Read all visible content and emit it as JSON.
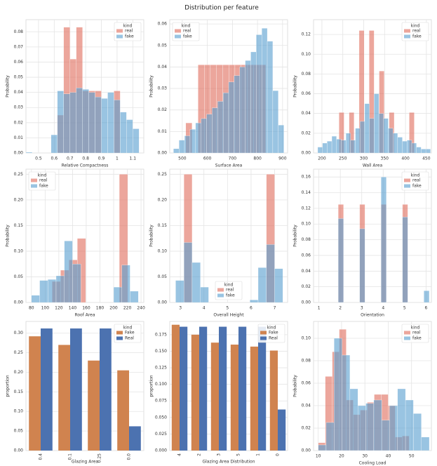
{
  "title": "Distribution per feature",
  "chart_data": [
    {
      "type": "histogram",
      "xlabel": "Relative Compactness",
      "ylabel": "Probability",
      "grid": true,
      "legend": "upper right",
      "legend_title": "kind",
      "xlim": [
        0.42,
        1.17
      ],
      "xticks": [
        0.5,
        0.6,
        0.7,
        0.8,
        0.9,
        1.0,
        1.1
      ],
      "ylim": [
        0,
        0.088
      ],
      "yticks": [
        {
          "value": 0,
          "label": "0.00"
        },
        0.01,
        0.02,
        0.03,
        0.04,
        0.05,
        0.06,
        0.07,
        0.08
      ],
      "series": [
        {
          "name": "real",
          "color": "#e0705f",
          "bins": [
            0.62,
            0.66,
            0.7,
            0.74,
            0.78,
            0.82,
            0.86,
            0.9,
            0.94,
            0.98,
            1.02
          ],
          "values": [
            0.025,
            0.083,
            0.062,
            0.083,
            0.041,
            0.041,
            0.041,
            0,
            0,
            0.041
          ]
        },
        {
          "name": "fake",
          "color": "#5b9fd0",
          "bins": [
            0.42,
            0.46,
            0.5,
            0.54,
            0.58,
            0.62,
            0.66,
            0.7,
            0.74,
            0.78,
            0.82,
            0.86,
            0.9,
            0.94,
            0.98,
            1.02,
            1.06,
            1.1,
            1.14
          ],
          "values": [
            0.0005,
            0,
            0,
            0,
            0.012,
            0.041,
            0.039,
            0.04,
            0.043,
            0.042,
            0.04,
            0.037,
            0.036,
            0.04,
            0.035,
            0.027,
            0.022,
            0.016
          ]
        }
      ]
    },
    {
      "type": "histogram",
      "xlabel": "Surface Area",
      "ylabel": "Probability",
      "grid": true,
      "legend": "upper left",
      "legend_title": "kind",
      "xlim": [
        450,
        920
      ],
      "xticks": [
        500,
        600,
        700,
        800,
        900
      ],
      "ylim": [
        0,
        0.062
      ],
      "yticks": [
        {
          "value": 0,
          "label": "0.00"
        },
        0.01,
        0.02,
        0.03,
        0.04,
        0.05,
        0.06
      ],
      "series": [
        {
          "name": "real",
          "color": "#e0705f",
          "bins": [
            514,
            539,
            563,
            588,
            612,
            637,
            661,
            686,
            710,
            735,
            759,
            784,
            808,
            833
          ],
          "values": [
            0.014,
            0,
            0.041,
            0.041,
            0.041,
            0.041,
            0.041,
            0.041,
            0.041,
            0.041,
            0.041,
            0.041,
            0.041
          ]
        },
        {
          "name": "fake",
          "color": "#5b9fd0",
          "bins": [
            465,
            487,
            509,
            531,
            553,
            575,
            597,
            619,
            641,
            663,
            685,
            707,
            729,
            751,
            773,
            795,
            817,
            839,
            861,
            883,
            905
          ],
          "values": [
            0.002,
            0.006,
            0.008,
            0.011,
            0.014,
            0.016,
            0.018,
            0.021,
            0.024,
            0.028,
            0.033,
            0.036,
            0.04,
            0.043,
            0.047,
            0.055,
            0.058,
            0.052,
            0.029,
            0.013
          ]
        }
      ]
    },
    {
      "type": "histogram",
      "xlabel": "Wall Area",
      "ylabel": "Probability",
      "grid": true,
      "legend": "upper right",
      "legend_title": "kind",
      "xlim": [
        180,
        462
      ],
      "xticks": [
        200,
        250,
        300,
        350,
        400,
        450
      ],
      "ylim": [
        0,
        0.135
      ],
      "yticks": [
        {
          "value": 0,
          "label": "0.00"
        },
        0.02,
        0.04,
        0.06,
        0.08,
        {
          "value": 0.1,
          "label": "0.10"
        },
        0.12
      ],
      "series": [
        {
          "name": "real",
          "color": "#e0705f",
          "bins": [
            241,
            253,
            265,
            277,
            289,
            301,
            313,
            325,
            337,
            349,
            361,
            373,
            385,
            397,
            409,
            421
          ],
          "values": [
            0.041,
            0,
            0.041,
            0,
            0.124,
            0,
            0.124,
            0,
            0.083,
            0,
            0.041,
            0,
            0,
            0,
            0.041
          ]
        },
        {
          "name": "fake",
          "color": "#5b9fd0",
          "bins": [
            190,
            201.25,
            212.5,
            223.75,
            235,
            246.25,
            257.5,
            268.75,
            280,
            291.25,
            302.5,
            313.75,
            325,
            336.25,
            347.5,
            358.75,
            370,
            381.25,
            392.5,
            403.75,
            415,
            426.25,
            437.5,
            448.75,
            460
          ],
          "values": [
            0.006,
            0.01,
            0.012,
            0.017,
            0.014,
            0.013,
            0.02,
            0.013,
            0.025,
            0.032,
            0.05,
            0.035,
            0.06,
            0.04,
            0.035,
            0.025,
            0.02,
            0.016,
            0.012,
            0.013,
            0.01,
            0.006,
            0.004,
            0.004
          ]
        }
      ]
    },
    {
      "type": "histogram",
      "xlabel": "Roof Area",
      "ylabel": "Probability",
      "grid": true,
      "legend": "upper left",
      "legend_title": "kind",
      "xlim": [
        72,
        244
      ],
      "xticks": [
        80,
        100,
        120,
        140,
        160,
        180,
        200,
        220,
        240
      ],
      "ylim": [
        0,
        0.26
      ],
      "yticks": [
        {
          "value": 0,
          "label": "0.00"
        },
        0.05,
        {
          "value": 0.1,
          "label": "0.10"
        },
        0.15,
        {
          "value": 0.2,
          "label": "0.20"
        },
        0.25
      ],
      "series": [
        {
          "name": "real",
          "color": "#e0705f",
          "bins": [
            110.25,
            122.5,
            134.75,
            147,
            159.25,
            171.5,
            183.75,
            196,
            208.25,
            220.5
          ],
          "values": [
            0.041,
            0.063,
            0.083,
            0.125,
            0,
            0,
            0,
            0,
            0.25
          ]
        },
        {
          "name": "fake",
          "color": "#5b9fd0",
          "bins": [
            80,
            92,
            104,
            116,
            128,
            140,
            152,
            164,
            176,
            188,
            200,
            212,
            224,
            236
          ],
          "values": [
            0.014,
            0.043,
            0.045,
            0.052,
            0.12,
            0.075,
            0,
            0,
            0,
            0,
            0.03,
            0.073,
            0.022
          ]
        }
      ]
    },
    {
      "type": "histogram",
      "xlabel": "Overall Height",
      "ylabel": "Probability",
      "grid": true,
      "legend": "lower center",
      "legend_title": "kind",
      "xlim": [
        2.55,
        7.55
      ],
      "xticks": [
        3,
        4,
        5,
        6,
        7
      ],
      "ylim": [
        0,
        0.26
      ],
      "yticks": [
        {
          "value": 0,
          "label": "0.00"
        },
        0.05,
        {
          "value": 0.1,
          "label": "0.10"
        },
        0.15,
        {
          "value": 0.2,
          "label": "0.20"
        },
        0.25
      ],
      "series": [
        {
          "name": "real",
          "color": "#e0705f",
          "bins": [
            3.15,
            3.5,
            6.65,
            7.0
          ],
          "values": [
            0.25,
            0,
            0.25
          ]
        },
        {
          "name": "fake",
          "color": "#5b9fd0",
          "bins": [
            2.8,
            3.15,
            3.5,
            3.85,
            4.2,
            4.55,
            4.9,
            5.25,
            5.6,
            5.95,
            6.3,
            6.65,
            7.0,
            7.35
          ],
          "values": [
            0.043,
            0.117,
            0.078,
            0.03,
            0,
            0,
            0,
            0,
            0,
            0.005,
            0.068,
            0.113,
            0.066
          ]
        }
      ]
    },
    {
      "type": "histogram",
      "xlabel": "Orientation",
      "ylabel": "Probability",
      "grid": true,
      "legend": "upper right",
      "legend_title": "kind",
      "xlim": [
        0.75,
        6.25
      ],
      "xticks": [
        1,
        2,
        3,
        4,
        5,
        6
      ],
      "ylim": [
        0,
        0.17
      ],
      "yticks": [
        {
          "value": 0,
          "label": "0.00"
        },
        0.02,
        0.04,
        0.06,
        0.08,
        {
          "value": 0.1,
          "label": "0.10"
        },
        0.12,
        0.14,
        0.16
      ],
      "series": [
        {
          "name": "real",
          "color": "#e0705f",
          "bins": [
            1.9,
            2.15,
            2.9,
            3.15,
            3.9,
            4.15,
            4.9,
            5.15
          ],
          "values": [
            0.125,
            0,
            0.125,
            0,
            0.125,
            0,
            0.125
          ]
        },
        {
          "name": "fake",
          "color": "#5b9fd0",
          "bins": [
            1.9,
            2.15,
            2.9,
            3.15,
            3.9,
            4.15,
            4.9,
            5.15,
            5.9,
            6.15
          ],
          "values": [
            0.107,
            0,
            0.094,
            0,
            0.16,
            0,
            0.109,
            0,
            0.015
          ]
        }
      ]
    },
    {
      "type": "bar",
      "xlabel": "Glazing Area",
      "ylabel": "proportion",
      "grid": true,
      "legend": "upper right",
      "legend_title": "kind",
      "categories": [
        "0.4",
        "0.1",
        "0.25",
        "0.0"
      ],
      "ylim": [
        0,
        0.33
      ],
      "yticks": [
        {
          "value": 0,
          "label": "0.00"
        },
        0.05,
        {
          "value": 0.1,
          "label": "0.10"
        },
        0.15,
        {
          "value": 0.2,
          "label": "0.20"
        },
        0.25,
        {
          "value": 0.3,
          "label": "0.30"
        }
      ],
      "series": [
        {
          "name": "Fake",
          "color": "#d0834f",
          "values": [
            0.292,
            0.27,
            0.23,
            0.205
          ]
        },
        {
          "name": "Real",
          "color": "#4c72b0",
          "values": [
            0.312,
            0.312,
            0.312,
            0.062
          ]
        }
      ]
    },
    {
      "type": "bar",
      "xlabel": "Glazing Area Distribution",
      "ylabel": "proportion",
      "grid": true,
      "legend": "upper right",
      "legend_title": "kind",
      "categories": [
        "4",
        "2",
        "3",
        "5",
        "1",
        "0"
      ],
      "ylim": [
        0,
        0.195
      ],
      "yticks": [
        {
          "value": 0,
          "label": "0.000"
        },
        0.025,
        {
          "value": 0.05,
          "label": "0.050"
        },
        0.075,
        {
          "value": 0.1,
          "label": "0.100"
        },
        0.125,
        {
          "value": 0.15,
          "label": "0.150"
        },
        0.175
      ],
      "series": [
        {
          "name": "Fake",
          "color": "#d0834f",
          "values": [
            0.19,
            0.175,
            0.163,
            0.16,
            0.157,
            0.151
          ]
        },
        {
          "name": "Real",
          "color": "#4c72b0",
          "values": [
            0.187,
            0.187,
            0.187,
            0.187,
            0.187,
            0.062
          ]
        }
      ]
    },
    {
      "type": "histogram",
      "xlabel": "Cooling Load",
      "ylabel": "Probability",
      "grid": true,
      "legend": "upper right",
      "legend_title": "kind",
      "xlim": [
        8,
        58.5
      ],
      "xticks": [
        10,
        20,
        30,
        40,
        50
      ],
      "ylim": [
        0,
        0.115
      ],
      "yticks": [
        {
          "value": 0,
          "label": "0.00"
        },
        0.02,
        0.04,
        0.06,
        0.08,
        {
          "value": 0.1,
          "label": "0.10"
        }
      ],
      "series": [
        {
          "name": "real",
          "color": "#e0705f",
          "bins": [
            10,
            13,
            16,
            19,
            22,
            25,
            28,
            31,
            34,
            37,
            40,
            43,
            46,
            49
          ],
          "values": [
            0.007,
            0.066,
            0.088,
            0.108,
            0.045,
            0.032,
            0.036,
            0.043,
            0.05,
            0.05,
            0.04,
            0.012,
            0.013
          ]
        },
        {
          "name": "fake",
          "color": "#5b9fd0",
          "bins": [
            10,
            13.4,
            16.8,
            20.2,
            23.6,
            27,
            30.4,
            33.8,
            37.2,
            40.6,
            44,
            47.4,
            50.8,
            54.2,
            57.6
          ],
          "values": [
            0.005,
            0.025,
            0.1,
            0.085,
            0.055,
            0.04,
            0.042,
            0.045,
            0.027,
            0.04,
            0.055,
            0.045,
            0.033,
            0.012
          ]
        }
      ]
    }
  ]
}
